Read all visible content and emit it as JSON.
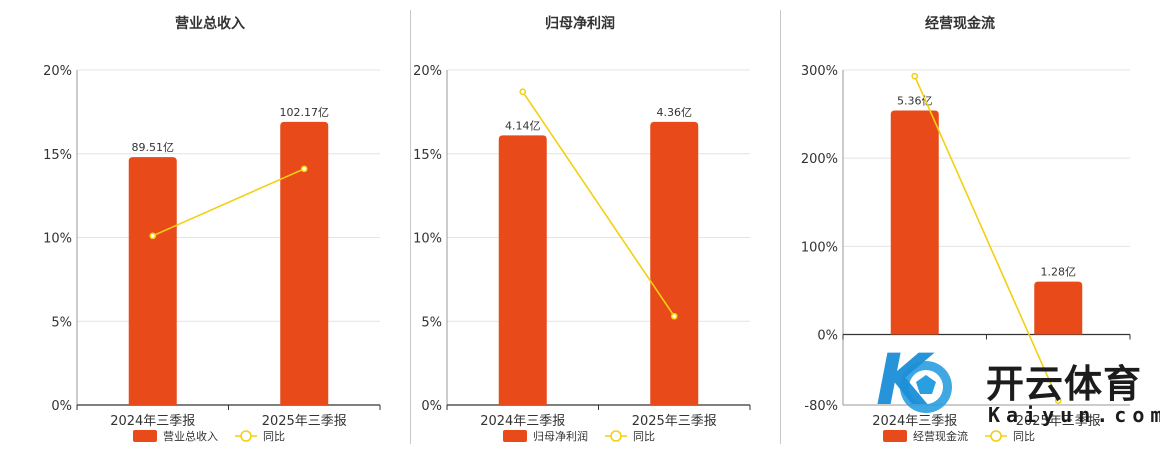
{
  "colors": {
    "bar": "#e84a1a",
    "line": "#f2d012",
    "grid": "#e4e4e4",
    "axis": "#333333"
  },
  "chart_data": [
    {
      "type": "bar",
      "title": "营业总收入",
      "categories": [
        "2024年三季报",
        "2025年三季报"
      ],
      "y_ticks": [
        "0%",
        "5%",
        "10%",
        "15%",
        "20%"
      ],
      "ylim": [
        0,
        20
      ],
      "series": [
        {
          "name": "营业总收入",
          "type": "bar",
          "values": [
            14.8,
            16.9
          ],
          "labels": [
            "89.51亿",
            "102.17亿"
          ]
        },
        {
          "name": "同比",
          "type": "line",
          "values": [
            10.1,
            14.1
          ]
        }
      ],
      "grid": true,
      "legend": "bottom"
    },
    {
      "type": "bar",
      "title": "归母净利润",
      "categories": [
        "2024年三季报",
        "2025年三季报"
      ],
      "y_ticks": [
        "0%",
        "5%",
        "10%",
        "15%",
        "20%"
      ],
      "ylim": [
        0,
        20
      ],
      "series": [
        {
          "name": "归母净利润",
          "type": "bar",
          "values": [
            16.1,
            16.9
          ],
          "labels": [
            "4.14亿",
            "4.36亿"
          ]
        },
        {
          "name": "同比",
          "type": "line",
          "values": [
            18.7,
            5.3
          ]
        }
      ],
      "grid": true,
      "legend": "bottom"
    },
    {
      "type": "bar",
      "title": "经营现金流",
      "categories": [
        "2024年三季报",
        "2025年三季报"
      ],
      "y_ticks": [
        "-80%",
        "0%",
        "100%",
        "200%",
        "300%"
      ],
      "ylim": [
        -80,
        300
      ],
      "series": [
        {
          "name": "经营现金流",
          "type": "bar",
          "values": [
            254,
            60
          ],
          "labels": [
            "5.36亿",
            "1.28亿"
          ]
        },
        {
          "name": "同比",
          "type": "line",
          "values": [
            293,
            -75
          ]
        }
      ],
      "grid": true,
      "legend": "bottom"
    }
  ],
  "watermark": {
    "brand": "开云体育",
    "domain": "Kaiyun.com",
    "logo_letter": "K"
  }
}
